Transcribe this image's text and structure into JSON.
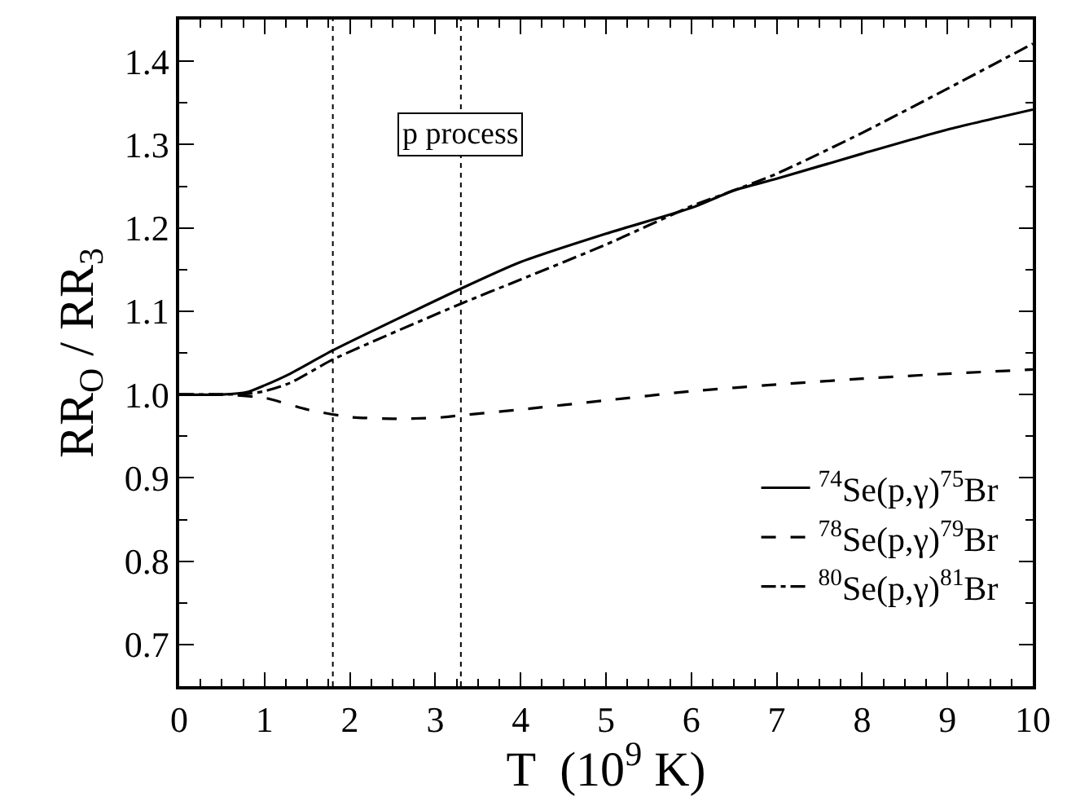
{
  "chart_data": {
    "type": "line",
    "xlabel": "T  (10$^{9}$ K)",
    "ylabel": "RR$_{O}$ / RR$_{3}$",
    "xlim": [
      0,
      10
    ],
    "xticks": [
      0,
      1,
      2,
      3,
      4,
      5,
      6,
      7,
      8,
      9,
      10
    ],
    "ylim": [
      0.65,
      1.45
    ],
    "yticks": [
      0.7,
      0.8,
      0.9,
      {
        "value": 1.0,
        "label": "1.0"
      },
      1.1,
      1.2,
      1.3,
      1.4
    ],
    "grid": false,
    "legend": "bottom right",
    "marker": "none",
    "series": [
      {
        "name": "$^{74}$Se(p,γ)$^{75}$Br",
        "color": "#000000",
        "line_style": "solid",
        "x": [
          0,
          0.5,
          0.8,
          1,
          1.3,
          1.8,
          3.3,
          4,
          5,
          6,
          6.5,
          7,
          8,
          9,
          10
        ],
        "values": [
          1.0,
          1.0,
          1.003,
          1.011,
          1.025,
          1.053,
          1.127,
          1.159,
          1.193,
          1.224,
          1.245,
          1.259,
          1.289,
          1.318,
          1.342
        ]
      },
      {
        "name": "$^{78}$Se(p,γ)$^{79}$Br",
        "color": "#000000",
        "line_style": "dashed",
        "x": [
          0,
          0.5,
          1,
          1.5,
          2,
          2.5,
          3,
          3.3,
          4,
          5,
          6,
          7,
          8,
          9,
          10
        ],
        "values": [
          1.0,
          1.0,
          0.996,
          0.982,
          0.973,
          0.971,
          0.972,
          0.975,
          0.982,
          0.993,
          1.004,
          1.012,
          1.019,
          1.025,
          1.03
        ]
      },
      {
        "name": "$^{80}$Se(p,γ)$^{81}$Br",
        "color": "#000000",
        "line_style": "dashdot",
        "x": [
          0,
          0.5,
          0.8,
          1,
          1.3,
          1.8,
          3.3,
          4,
          5,
          6,
          6.5,
          7,
          8,
          9,
          10
        ],
        "values": [
          1.0,
          1.0,
          1.001,
          1.004,
          1.014,
          1.042,
          1.109,
          1.138,
          1.18,
          1.226,
          1.245,
          1.265,
          1.314,
          1.367,
          1.421
        ]
      }
    ],
    "ref_lines": [
      {
        "axis": "x",
        "value": 1.8,
        "color": "#000000",
        "line_style": "dotted"
      },
      {
        "axis": "x",
        "value": 3.3,
        "color": "#000000",
        "line_style": "dotted"
      }
    ],
    "annotations": [
      "p process"
    ]
  }
}
